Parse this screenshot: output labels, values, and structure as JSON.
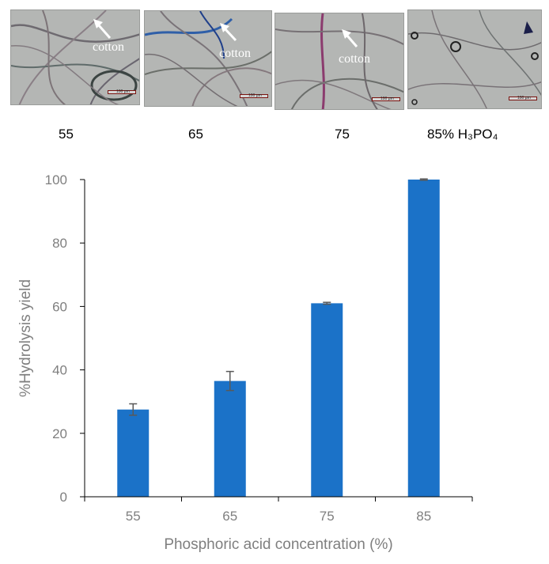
{
  "micrographs": [
    {
      "label": "55",
      "annotation": "cotton",
      "scale_text": "100 μm"
    },
    {
      "label": "65",
      "annotation": "cotton",
      "scale_text": "100 μm"
    },
    {
      "label": "75",
      "annotation": "cotton",
      "scale_text": "100 μm"
    },
    {
      "label": "85% H₃PO₄",
      "annotation": "",
      "scale_text": "100 μm"
    }
  ],
  "chart_data": {
    "type": "bar",
    "title": "",
    "categories": [
      "55",
      "65",
      "75",
      "85"
    ],
    "values": [
      27.5,
      36.5,
      61,
      100
    ],
    "error": [
      1.8,
      3.0,
      0.3,
      0.2
    ],
    "xlabel": "Phosphoric acid concentration (%)",
    "ylabel": "%Hydrolysis yield",
    "ylim": [
      0,
      100
    ],
    "yticks": [
      0,
      20,
      40,
      60,
      80,
      100
    ],
    "grid": false,
    "legend": "none",
    "bar_color": "#1b72c8",
    "axis_color": "#000000",
    "text_color": "#7f7f7f"
  }
}
